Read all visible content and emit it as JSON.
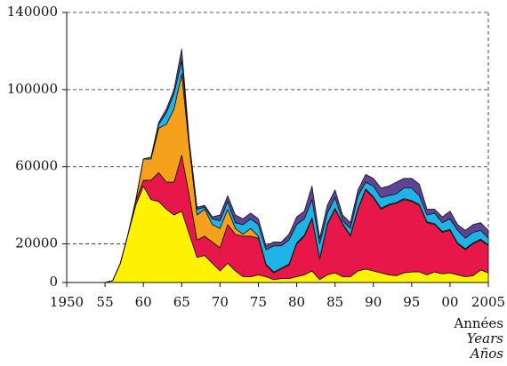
{
  "chart_data": {
    "type": "stacked_area",
    "x": [
      1950,
      1951,
      1952,
      1953,
      1954,
      1955,
      1956,
      1957,
      1958,
      1959,
      1960,
      1961,
      1962,
      1963,
      1964,
      1965,
      1966,
      1967,
      1968,
      1969,
      1970,
      1971,
      1972,
      1973,
      1974,
      1975,
      1976,
      1977,
      1978,
      1979,
      1980,
      1981,
      1982,
      1983,
      1984,
      1985,
      1986,
      1987,
      1988,
      1989,
      1990,
      1991,
      1992,
      1993,
      1994,
      1995,
      1996,
      1997,
      1998,
      1999,
      2000,
      2001,
      2002,
      2003,
      2004,
      2005
    ],
    "series": [
      {
        "color": "#fff200",
        "values": [
          0,
          0,
          0,
          0,
          0,
          0,
          1000,
          10000,
          25000,
          40000,
          50000,
          43000,
          42000,
          38000,
          35000,
          37000,
          25000,
          13000,
          14000,
          10000,
          6000,
          10000,
          6000,
          3000,
          3000,
          4000,
          3000,
          1500,
          2000,
          2000,
          3000,
          4000,
          6000,
          1500,
          4000,
          5000,
          3000,
          3000,
          6000,
          7000,
          6000,
          5000,
          4000,
          3500,
          5000,
          5500,
          5500,
          4000,
          5500,
          4500,
          5000,
          4000,
          3000,
          3500,
          6500,
          5000
        ]
      },
      {
        "color": "#e8174a",
        "values": [
          0,
          0,
          0,
          0,
          0,
          0,
          0,
          0,
          0,
          2000,
          3000,
          10000,
          15000,
          14000,
          17000,
          29000,
          20000,
          9000,
          10000,
          11000,
          12000,
          20000,
          19000,
          21000,
          21000,
          19000,
          6000,
          3500,
          5000,
          7000,
          17000,
          20000,
          27000,
          10500,
          26000,
          33000,
          27000,
          21000,
          32000,
          41000,
          38000,
          33000,
          36000,
          37500,
          38000,
          36500,
          34500,
          27000,
          24500,
          21500,
          22000,
          16000,
          14000,
          16500,
          15500,
          14000
        ]
      },
      {
        "color": "#f6a11c",
        "values": [
          0,
          0,
          0,
          0,
          0,
          0,
          0,
          0,
          0,
          500,
          11000,
          11000,
          23000,
          30000,
          38000,
          42000,
          25000,
          13000,
          14000,
          9000,
          10000,
          8000,
          3000,
          1000,
          4000,
          1000,
          500,
          500,
          500,
          500,
          500,
          500,
          500,
          500,
          500,
          500,
          500,
          500,
          500,
          500,
          500,
          500,
          500,
          500,
          500,
          500,
          500,
          500,
          500,
          500,
          500,
          500,
          500,
          500,
          500,
          500
        ]
      },
      {
        "color": "#1fb4e6",
        "values": [
          0,
          0,
          0,
          0,
          0,
          0,
          0,
          0,
          0,
          0,
          0,
          1000,
          2000,
          6000,
          8000,
          7000,
          2000,
          3000,
          1000,
          3000,
          4000,
          4000,
          3000,
          5000,
          5000,
          6000,
          7500,
          13500,
          11500,
          12500,
          9500,
          8500,
          9500,
          7500,
          5500,
          5500,
          1500,
          3500,
          6500,
          3500,
          5500,
          5500,
          4500,
          4500,
          5500,
          6500,
          4500,
          3500,
          5500,
          4500,
          5500,
          6500,
          5500,
          5500,
          4500,
          3500
        ]
      },
      {
        "color": "#5e4497",
        "values": [
          0,
          0,
          0,
          0,
          0,
          0,
          0,
          0,
          0,
          0,
          0,
          0,
          1000,
          2000,
          2000,
          6000,
          1000,
          1000,
          1000,
          1000,
          3000,
          3000,
          4000,
          3000,
          3000,
          3000,
          2000,
          2000,
          2000,
          3000,
          4000,
          4000,
          7000,
          3000,
          4000,
          4000,
          3000,
          3000,
          3000,
          4000,
          4000,
          5000,
          5000,
          6000,
          5000,
          5000,
          6000,
          3000,
          2000,
          3000,
          4000,
          3000,
          4000,
          4000,
          4000,
          4000
        ]
      }
    ],
    "xlim": [
      1950,
      2005
    ],
    "xticks": [
      1950,
      {
        "value": 1955,
        "label": "55"
      },
      {
        "value": 1960,
        "label": "60"
      },
      {
        "value": 1965,
        "label": "65"
      },
      {
        "value": 1970,
        "label": "70"
      },
      {
        "value": 1975,
        "label": "75"
      },
      {
        "value": 1980,
        "label": "80"
      },
      {
        "value": 1985,
        "label": "85"
      },
      {
        "value": 1990,
        "label": "90"
      },
      {
        "value": 1995,
        "label": "95"
      },
      {
        "value": 2000,
        "label": "00"
      },
      2005
    ],
    "ylim": [
      0,
      140000
    ],
    "yticks": [
      0,
      20000,
      60000,
      100000,
      140000
    ],
    "grid": true,
    "x_label": [
      "Années",
      "Years",
      "Años"
    ]
  }
}
